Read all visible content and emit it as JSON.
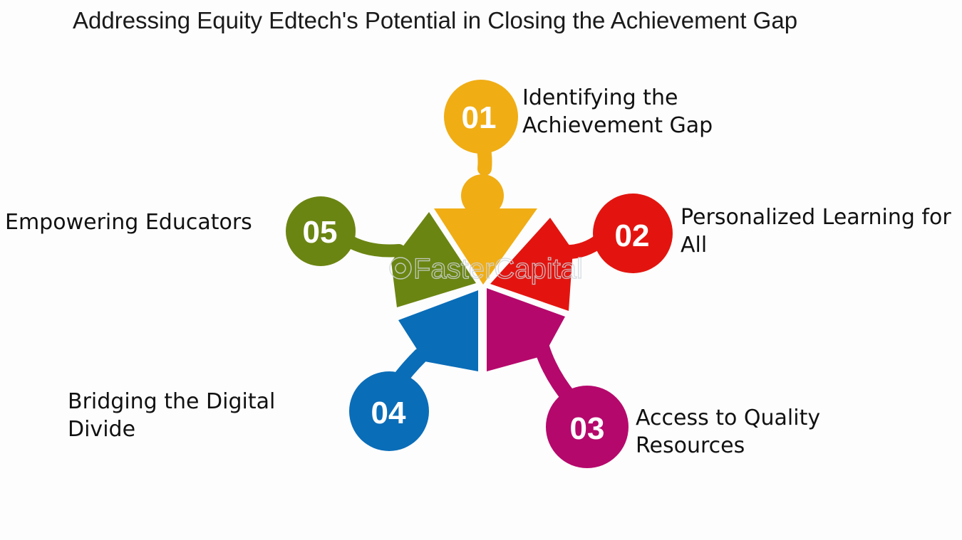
{
  "title": "Addressing Equity Edtech's Potential in Closing the Achievement Gap",
  "watermark": "FasterCapital",
  "items": [
    {
      "number": "01",
      "lines": [
        "Identifying the",
        "Achievement Gap"
      ],
      "color": "#f0ad14"
    },
    {
      "number": "02",
      "lines": [
        "Personalized Learning for",
        "All"
      ],
      "color": "#e3140f"
    },
    {
      "number": "03",
      "lines": [
        "Access to Quality",
        "Resources"
      ],
      "color": "#b5086c"
    },
    {
      "number": "04",
      "lines": [
        "Bridging the Digital",
        "Divide"
      ],
      "color": "#0a6db8"
    },
    {
      "number": "05",
      "lines": [
        "Empowering Educators"
      ],
      "color": "#6b8512"
    }
  ]
}
